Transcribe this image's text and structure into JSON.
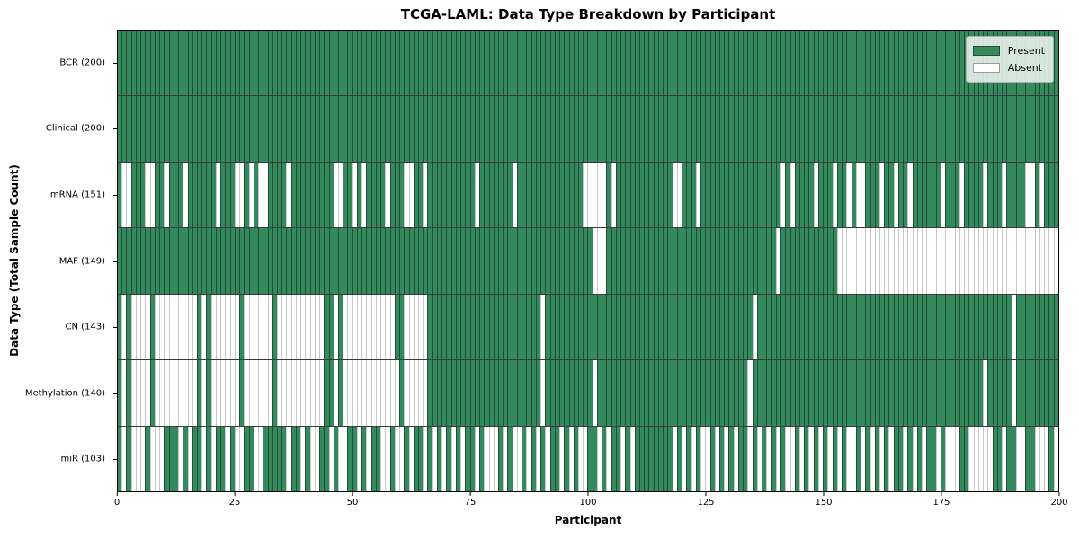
{
  "figure": {
    "title": "TCGA-LAML: Data Type Breakdown by Participant",
    "xlabel": "Participant",
    "ylabel": "Data Type (Total Sample Count)"
  },
  "legend": {
    "position": "upper right",
    "items": [
      {
        "label": "Present",
        "state": "present"
      },
      {
        "label": "Absent",
        "state": "absent"
      }
    ]
  },
  "colors": {
    "present": "#348a5c",
    "present_edge": "#1e4e34",
    "absent": "#ffffff",
    "absent_edge": "#c9c9c9",
    "row_divider": "#3a3a3a",
    "plot_border": "#000000"
  },
  "chart_data": {
    "type": "heatmap",
    "title": "TCGA-LAML: Data Type Breakdown by Participant",
    "xlabel": "Participant",
    "ylabel": "Data Type (Total Sample Count)",
    "x_range": [
      0,
      200
    ],
    "x_ticks": [
      0,
      25,
      50,
      75,
      100,
      125,
      150,
      175,
      200
    ],
    "n_participants": 200,
    "cell_encoding": {
      "present": 1,
      "absent": 0
    },
    "grid": false,
    "legend_position": "upper right",
    "rows": [
      {
        "name": "BCR",
        "label": "BCR (200)",
        "present_count": 200,
        "absent_participants": []
      },
      {
        "name": "Clinical",
        "label": "Clinical (200)",
        "present_count": 200,
        "absent_participants": []
      },
      {
        "name": "mRNA",
        "label": "mRNA (151)",
        "present_count": 151,
        "absent_participants": [
          1,
          2,
          6,
          7,
          10,
          14,
          21,
          25,
          26,
          28,
          30,
          31,
          36,
          46,
          47,
          50,
          52,
          57,
          61,
          62,
          65,
          76,
          84,
          99,
          100,
          101,
          102,
          103,
          105,
          118,
          119,
          123,
          141,
          143,
          148,
          152,
          155,
          157,
          158,
          162,
          165,
          168,
          175,
          179,
          184,
          188,
          193,
          194,
          196
        ]
      },
      {
        "name": "MAF",
        "label": "MAF (149)",
        "present_count": 149,
        "absent_participants": [
          101,
          102,
          103,
          140,
          153,
          154,
          155,
          156,
          157,
          158,
          159,
          160,
          161,
          162,
          163,
          164,
          165,
          166,
          167,
          168,
          169,
          170,
          171,
          172,
          173,
          174,
          175,
          176,
          177,
          178,
          179,
          180,
          181,
          182,
          183,
          184,
          185,
          186,
          187,
          188,
          189,
          190,
          191,
          192,
          193,
          194,
          195,
          196,
          197,
          198,
          199
        ]
      },
      {
        "name": "CN",
        "label": "CN (143)",
        "present_count": 143,
        "absent_participants": [
          1,
          3,
          4,
          5,
          6,
          8,
          9,
          10,
          11,
          12,
          13,
          14,
          15,
          16,
          18,
          20,
          21,
          22,
          23,
          24,
          25,
          27,
          28,
          29,
          30,
          31,
          32,
          34,
          35,
          36,
          37,
          38,
          39,
          40,
          41,
          42,
          43,
          46,
          48,
          49,
          50,
          51,
          52,
          53,
          54,
          55,
          56,
          57,
          58,
          61,
          62,
          63,
          64,
          65,
          90,
          135,
          190
        ]
      },
      {
        "name": "Methylation",
        "label": "Methylation (140)",
        "present_count": 140,
        "absent_participants": [
          1,
          3,
          4,
          5,
          6,
          8,
          9,
          10,
          11,
          12,
          13,
          14,
          15,
          16,
          18,
          20,
          21,
          22,
          23,
          24,
          25,
          27,
          28,
          29,
          30,
          31,
          32,
          34,
          35,
          36,
          37,
          38,
          39,
          40,
          41,
          42,
          43,
          46,
          48,
          49,
          50,
          51,
          52,
          53,
          54,
          55,
          56,
          57,
          58,
          59,
          61,
          62,
          63,
          64,
          65,
          90,
          101,
          134,
          184,
          190
        ]
      },
      {
        "name": "miR",
        "label": "miR (103)",
        "present_count": 103,
        "absent_participants": [
          1,
          3,
          4,
          5,
          7,
          8,
          9,
          13,
          15,
          18,
          20,
          23,
          25,
          26,
          29,
          30,
          36,
          39,
          41,
          42,
          45,
          47,
          48,
          51,
          53,
          56,
          57,
          59,
          60,
          62,
          65,
          67,
          69,
          71,
          73,
          76,
          78,
          79,
          80,
          82,
          84,
          85,
          87,
          89,
          91,
          94,
          96,
          98,
          99,
          102,
          104,
          107,
          109,
          118,
          120,
          122,
          124,
          125,
          127,
          129,
          131,
          134,
          136,
          138,
          140,
          142,
          143,
          145,
          147,
          149,
          151,
          153,
          155,
          156,
          158,
          160,
          162,
          164,
          167,
          169,
          171,
          174,
          176,
          177,
          178,
          181,
          182,
          183,
          184,
          185,
          188,
          191,
          192,
          195,
          196,
          197,
          199
        ]
      }
    ]
  }
}
